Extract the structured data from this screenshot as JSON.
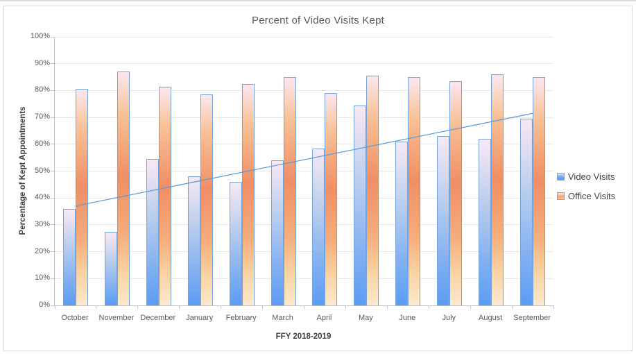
{
  "chart_data": {
    "type": "bar",
    "title": "Percent of Video Visits Kept",
    "xlabel": "FFY 2018-2019",
    "ylabel": "Percentage of Kept Appointments",
    "categories": [
      "October",
      "November",
      "December",
      "January",
      "February",
      "March",
      "April",
      "May",
      "June",
      "July",
      "August",
      "September"
    ],
    "series": [
      {
        "name": "Video Visits",
        "color": "#5b9cf4",
        "values": [
          36,
          27.5,
          54.5,
          48,
          46,
          54,
          58.5,
          74.5,
          61,
          63,
          62,
          69.5
        ]
      },
      {
        "name": "Office Visits",
        "color": "#f18e64",
        "values": [
          80.5,
          87,
          81.5,
          78.5,
          82.5,
          85,
          79,
          85.5,
          85,
          83.5,
          86,
          85
        ]
      }
    ],
    "trendline": {
      "for_series": "Video Visits",
      "start_value": 37,
      "end_value": 71.5,
      "color": "#5b9bd5"
    },
    "ylim": [
      0,
      100
    ],
    "ytick_step": 10,
    "ytick_suffix": "%",
    "ytick_labels": [
      "0%",
      "10%",
      "20%",
      "30%",
      "40%",
      "50%",
      "60%",
      "70%",
      "80%",
      "90%",
      "100%"
    ],
    "grid": true,
    "legend_position": "right",
    "colors": {
      "title_text": "#595959",
      "axis_text": "#595959",
      "axis_title_text": "#404040",
      "gridline": "#e7e7e7",
      "axis_line": "#bfbfbf",
      "bar_border": "#74a4de",
      "frame_border": "#d9d9d9"
    }
  }
}
